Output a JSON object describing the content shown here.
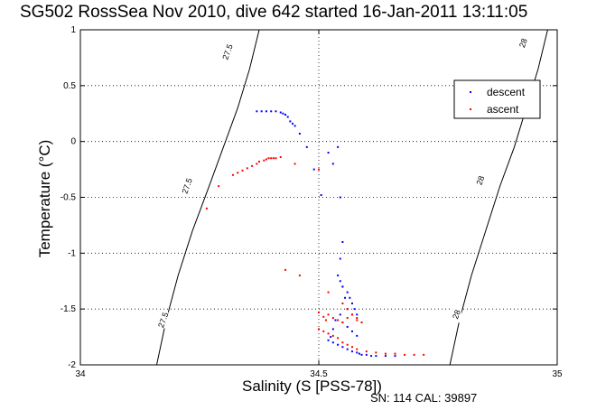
{
  "chart_data": {
    "type": "scatter",
    "title": "SG502 RossSea Nov 2010, dive 642 started 16-Jan-2011 13:11:05",
    "xlabel": "Salinity (S [PSS-78])",
    "ylabel": "Temperature (°C)",
    "footer": "SN: 114  CAL: 39897",
    "xlim": [
      34,
      35
    ],
    "ylim": [
      -2,
      1
    ],
    "xticks": [
      {
        "v": 34,
        "label": "34"
      },
      {
        "v": 34.5,
        "label": "34.5"
      },
      {
        "v": 35,
        "label": "35"
      }
    ],
    "yticks": [
      {
        "v": -2,
        "label": "-2"
      },
      {
        "v": -1.5,
        "label": "-1.5"
      },
      {
        "v": -1,
        "label": "-1"
      },
      {
        "v": -0.5,
        "label": "-0.5"
      },
      {
        "v": 0,
        "label": "0"
      },
      {
        "v": 0.5,
        "label": "0.5"
      },
      {
        "v": 1,
        "label": "1"
      }
    ],
    "grid": true,
    "legend_position": "top-right",
    "isopycnals": [
      {
        "label": "27.5",
        "points": [
          [
            34.16,
            -2
          ],
          [
            34.18,
            -1.6
          ],
          [
            34.205,
            -1.2
          ],
          [
            34.235,
            -0.8
          ],
          [
            34.27,
            -0.4
          ],
          [
            34.3,
            -0.05
          ],
          [
            34.33,
            0.3
          ],
          [
            34.355,
            0.65
          ],
          [
            34.375,
            1
          ]
        ],
        "labels_at": [
          [
            34.175,
            -1.6
          ],
          [
            34.225,
            -0.4
          ],
          [
            34.31,
            0.8
          ]
        ]
      },
      {
        "label": "28",
        "points": [
          [
            34.775,
            -2
          ],
          [
            34.795,
            -1.6
          ],
          [
            34.82,
            -1.2
          ],
          [
            34.85,
            -0.8
          ],
          [
            34.88,
            -0.4
          ],
          [
            34.91,
            -0.05
          ],
          [
            34.935,
            0.3
          ],
          [
            34.96,
            0.65
          ],
          [
            34.98,
            1
          ]
        ],
        "labels_at": [
          [
            34.79,
            -1.55
          ],
          [
            34.84,
            -0.35
          ],
          [
            34.93,
            0.88
          ]
        ]
      }
    ],
    "series": [
      {
        "name": "descent",
        "color": "#0000ff",
        "x": [
          34.37,
          34.38,
          34.39,
          34.4,
          34.41,
          34.42,
          34.425,
          34.43,
          34.435,
          34.44,
          34.445,
          34.45,
          34.46,
          34.475,
          34.49,
          34.505,
          34.52,
          34.53,
          34.54,
          34.545,
          34.55,
          34.545,
          34.54,
          34.55,
          34.555,
          34.56,
          34.545,
          34.535,
          34.53,
          34.525,
          34.52,
          34.53,
          34.54,
          34.55,
          34.56,
          34.57,
          34.58,
          34.585,
          34.59,
          34.6,
          34.61,
          34.62,
          34.64,
          34.66,
          34.545,
          34.55,
          34.56,
          34.565,
          34.57,
          34.575,
          34.58,
          34.55,
          34.56,
          34.57,
          34.58
        ],
        "y": [
          0.27,
          0.27,
          0.27,
          0.27,
          0.27,
          0.26,
          0.25,
          0.24,
          0.22,
          0.18,
          0.16,
          0.14,
          0.07,
          -0.05,
          -0.25,
          -0.48,
          -0.1,
          -0.2,
          -0.05,
          -0.5,
          -0.9,
          -1.05,
          -1.2,
          -1.3,
          -1.4,
          -1.5,
          -1.55,
          -1.6,
          -1.68,
          -1.75,
          -1.78,
          -1.8,
          -1.82,
          -1.84,
          -1.86,
          -1.88,
          -1.89,
          -1.9,
          -1.91,
          -1.91,
          -1.92,
          -1.92,
          -1.92,
          -1.92,
          -1.25,
          -1.3,
          -1.35,
          -1.4,
          -1.45,
          -1.5,
          -1.55,
          -1.62,
          -1.66,
          -1.7,
          -1.74
        ]
      },
      {
        "name": "ascent",
        "color": "#ff0000",
        "x": [
          34.265,
          34.29,
          34.32,
          34.33,
          34.34,
          34.35,
          34.36,
          34.37,
          34.375,
          34.385,
          34.39,
          34.395,
          34.4,
          34.405,
          34.41,
          34.42,
          34.45,
          34.5,
          34.43,
          34.46,
          34.52,
          34.5,
          34.51,
          34.515,
          34.52,
          34.53,
          34.54,
          34.55,
          34.56,
          34.57,
          34.58,
          34.59,
          34.5,
          34.51,
          34.52,
          34.53,
          34.54,
          34.55,
          34.56,
          34.57,
          34.58,
          34.6,
          34.62,
          34.64,
          34.66,
          34.68,
          34.7,
          34.72,
          34.55,
          34.56,
          34.57,
          34.58
        ],
        "y": [
          -0.6,
          -0.4,
          -0.3,
          -0.28,
          -0.26,
          -0.24,
          -0.22,
          -0.2,
          -0.18,
          -0.17,
          -0.16,
          -0.15,
          -0.15,
          -0.15,
          -0.15,
          -0.14,
          -0.2,
          -0.25,
          -1.15,
          -1.2,
          -1.35,
          -1.53,
          -1.57,
          -1.6,
          -1.55,
          -1.58,
          -1.6,
          -1.62,
          -1.58,
          -1.55,
          -1.6,
          -1.62,
          -1.68,
          -1.7,
          -1.72,
          -1.74,
          -1.76,
          -1.8,
          -1.82,
          -1.84,
          -1.86,
          -1.88,
          -1.89,
          -1.9,
          -1.9,
          -1.91,
          -1.91,
          -1.91,
          -1.45,
          -1.5,
          -1.55,
          -1.58
        ]
      }
    ]
  }
}
